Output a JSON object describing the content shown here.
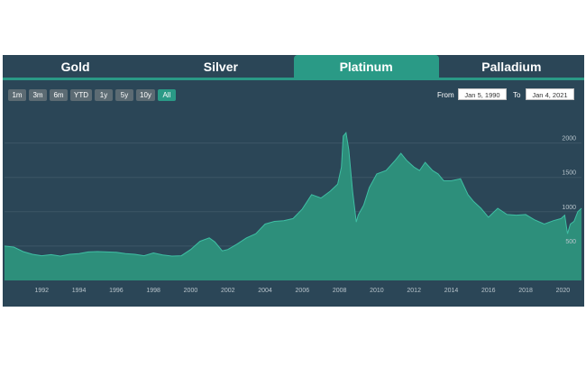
{
  "tabs": [
    {
      "label": "Gold",
      "active": false
    },
    {
      "label": "Silver",
      "active": false
    },
    {
      "label": "Platinum",
      "active": true
    },
    {
      "label": "Palladium",
      "active": false
    }
  ],
  "ranges": [
    {
      "label": "1m",
      "active": false
    },
    {
      "label": "3m",
      "active": false
    },
    {
      "label": "6m",
      "active": false
    },
    {
      "label": "YTD",
      "active": false
    },
    {
      "label": "1y",
      "active": false
    },
    {
      "label": "5y",
      "active": false
    },
    {
      "label": "10y",
      "active": false
    },
    {
      "label": "All",
      "active": true
    }
  ],
  "date_range": {
    "from_label": "From",
    "from_value": "Jan 5, 1990",
    "to_label": "To",
    "to_value": "Jan 4, 2021"
  },
  "colors": {
    "panel_bg": "#2b4657",
    "accent": "#2a9a86",
    "area_fill": "#2d8f7b",
    "area_line": "#3fbfa4",
    "grid": "#3d5667"
  },
  "chart_data": {
    "type": "area",
    "title": "",
    "xlabel": "",
    "ylabel": "",
    "xlim": [
      1990.0,
      2021.0
    ],
    "ylim": [
      0,
      2100
    ],
    "yticks": [
      500,
      1000,
      1500,
      2000
    ],
    "ytick_labels": [
      "500",
      "1000",
      "1500",
      "2000"
    ],
    "xticks": [
      1992,
      1994,
      1996,
      1998,
      2000,
      2002,
      2004,
      2006,
      2008,
      2010,
      2012,
      2014,
      2016,
      2018,
      2020
    ],
    "xtick_labels": [
      "1992",
      "1994",
      "1996",
      "1998",
      "2000",
      "2002",
      "2004",
      "2006",
      "2008",
      "2010",
      "2012",
      "2014",
      "2016",
      "2018",
      "2020"
    ],
    "grid": true,
    "series": [
      {
        "x": [
          1990.0,
          1990.5,
          1991.0,
          1991.5,
          1992.0,
          1992.5,
          1993.0,
          1993.5,
          1994.0,
          1994.5,
          1995.0,
          1995.5,
          1996.0,
          1996.5,
          1997.0,
          1997.5,
          1998.0,
          1998.5,
          1999.0,
          1999.5,
          2000.0,
          2000.5,
          2001.0,
          2001.3,
          2001.7,
          2002.0,
          2002.5,
          2003.0,
          2003.5,
          2004.0,
          2004.5,
          2005.0,
          2005.5,
          2006.0,
          2006.5,
          2007.0,
          2007.5,
          2007.9,
          2008.1,
          2008.2,
          2008.35,
          2008.5,
          2008.7,
          2008.9,
          2009.0,
          2009.3,
          2009.6,
          2010.0,
          2010.5,
          2011.0,
          2011.3,
          2011.6,
          2012.0,
          2012.3,
          2012.6,
          2013.0,
          2013.3,
          2013.6,
          2014.0,
          2014.5,
          2014.9,
          2015.2,
          2015.6,
          2016.0,
          2016.5,
          2017.0,
          2017.5,
          2018.0,
          2018.5,
          2019.0,
          2019.5,
          2019.9,
          2020.1,
          2020.25,
          2020.4,
          2020.6,
          2020.8,
          2021.0
        ],
        "y": [
          500,
          485,
          420,
          380,
          360,
          375,
          355,
          380,
          390,
          415,
          420,
          415,
          410,
          390,
          380,
          360,
          400,
          370,
          355,
          360,
          450,
          570,
          620,
          560,
          430,
          450,
          530,
          620,
          680,
          820,
          860,
          870,
          900,
          1040,
          1250,
          1200,
          1300,
          1400,
          1650,
          2100,
          2150,
          1900,
          1300,
          850,
          950,
          1100,
          1350,
          1550,
          1600,
          1750,
          1850,
          1750,
          1650,
          1600,
          1720,
          1600,
          1550,
          1450,
          1450,
          1480,
          1250,
          1150,
          1050,
          920,
          1050,
          960,
          950,
          960,
          880,
          820,
          870,
          900,
          950,
          680,
          820,
          860,
          1000,
          1050
        ]
      }
    ]
  }
}
